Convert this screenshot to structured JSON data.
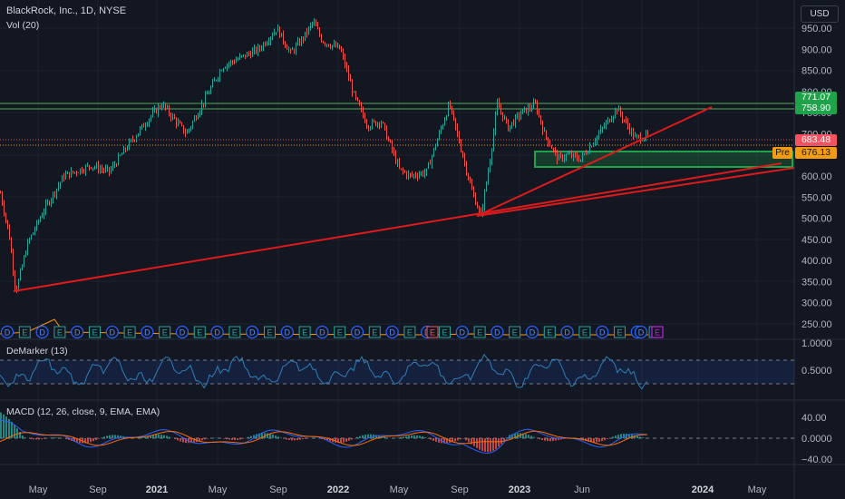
{
  "header": {
    "title": "BlackRock, Inc., 1D, NYSE",
    "volume": "Vol (20)",
    "currency_button": "USD"
  },
  "indicators": {
    "demarker_title": "DeMarker (13)",
    "macd_title": "MACD (12, 26, close, 9, EMA, EMA)"
  },
  "price_axis": [
    "950.00",
    "900.00",
    "850.00",
    "800.00",
    "750.00",
    "700.00",
    "650.00",
    "600.00",
    "550.00",
    "500.00",
    "450.00",
    "400.00",
    "350.00",
    "300.00",
    "250.00"
  ],
  "demarker_axis": [
    "1.0000",
    "0.5000"
  ],
  "macd_axis": [
    "40.00",
    "0.0000",
    "−40.00"
  ],
  "time_axis": [
    "May",
    "Sep",
    "2021",
    "May",
    "Sep",
    "2022",
    "May",
    "Sep",
    "2023",
    "Jun",
    "2024",
    "May"
  ],
  "price_tags": [
    {
      "label": "771.07",
      "bg": "#1fa34a",
      "color": "#ffffff"
    },
    {
      "label": "758.90",
      "bg": "#1fa34a",
      "color": "#ffffff"
    },
    {
      "label": "683.48",
      "bg": "#f7525f",
      "color": "#ffffff"
    },
    {
      "label": "676.13",
      "bg": "#f59b13",
      "color": "#131722"
    }
  ],
  "premarket_label": "Pre",
  "events": [
    "D",
    "E",
    "D",
    "E",
    "D",
    "E",
    "D",
    "E",
    "D",
    "E",
    "D",
    "E",
    "D",
    "E",
    "D",
    "E",
    "D",
    "E",
    "D",
    "E",
    "D",
    "E",
    "D",
    "E",
    "D",
    "E",
    "D",
    "E",
    "D",
    "E",
    "D",
    "E",
    "D",
    "E",
    "D",
    "E",
    "D",
    "E"
  ],
  "colors": {
    "up": "#26a69a",
    "down": "#ef5350",
    "trendline": "#e01a1a",
    "zone": "#1fa34a",
    "demarker_line": "#2e7fb8",
    "macd_line": "#2962ff",
    "signal_line": "#ff6d00"
  }
}
